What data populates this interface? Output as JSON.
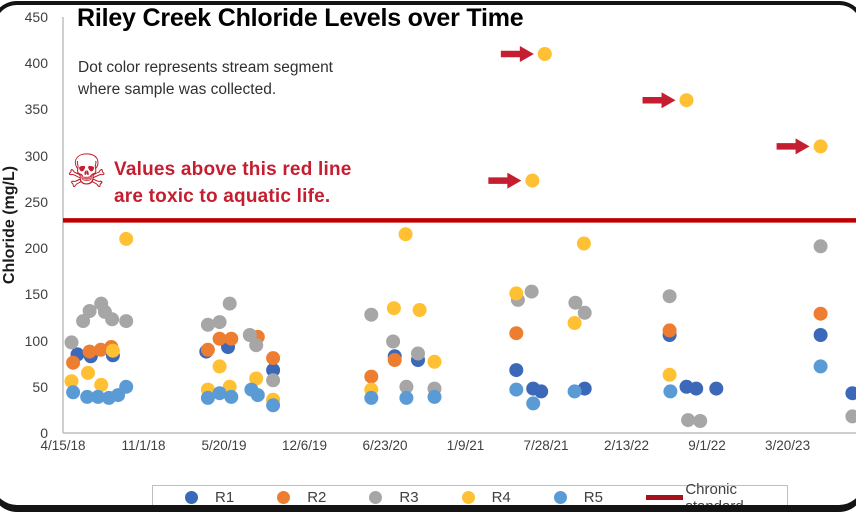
{
  "title": {
    "highlight": "Riley Creek",
    "rest": " Chloride Levels over Time"
  },
  "subtitle": {
    "line1": "Dot color represents stream segment",
    "line2": "where sample was collected."
  },
  "annotation": {
    "icon": "skull-crossbones",
    "glyph": "☠",
    "line1": "Values above this red line",
    "line2": "are toxic to aquatic life.",
    "color": "#c41e30"
  },
  "legend": {
    "items": [
      {
        "label": "R1",
        "color": "#3B68B8"
      },
      {
        "label": "R2",
        "color": "#ED7D31"
      },
      {
        "label": "R3",
        "color": "#A6A6A6"
      },
      {
        "label": "R4",
        "color": "#FFC033"
      },
      {
        "label": "R5",
        "color": "#5B9BD5"
      }
    ],
    "line_item": {
      "label": "Chronic standard",
      "color": "#A6121B"
    }
  },
  "chart_data": {
    "type": "scatter",
    "title": "Riley Creek Chloride Levels over Time",
    "ylabel": "Chloride (mg/L)",
    "ylim": [
      0,
      450
    ],
    "y_ticks": [
      450,
      400,
      350,
      300,
      250,
      200,
      150,
      100,
      50,
      0
    ],
    "x_unit": "days since 4/15/2018",
    "xlim_days": [
      0,
      1970
    ],
    "x_ticks": [
      {
        "days": 0,
        "label": "4/15/18"
      },
      {
        "days": 200,
        "label": "11/1/18"
      },
      {
        "days": 400,
        "label": "5/20/19"
      },
      {
        "days": 600,
        "label": "12/6/19"
      },
      {
        "days": 800,
        "label": "6/23/20"
      },
      {
        "days": 1000,
        "label": "1/9/21"
      },
      {
        "days": 1200,
        "label": "7/28/21"
      },
      {
        "days": 1400,
        "label": "2/13/22"
      },
      {
        "days": 1600,
        "label": "9/1/22"
      },
      {
        "days": 1800,
        "label": "3/20/23"
      }
    ],
    "grid": false,
    "legend_position": "bottom",
    "chronic_standard": {
      "label": "Chronic standard",
      "value": 230,
      "color": "#C00000"
    },
    "series": [
      {
        "name": "R1",
        "color": "#3B68B8",
        "points": [
          [
            36,
            85
          ],
          [
            69,
            83
          ],
          [
            124,
            84
          ],
          [
            356,
            88
          ],
          [
            410,
            93
          ],
          [
            522,
            68
          ],
          [
            824,
            83
          ],
          [
            882,
            79
          ],
          [
            1126,
            68
          ],
          [
            1168,
            48
          ],
          [
            1188,
            45
          ],
          [
            1296,
            48
          ],
          [
            1507,
            106
          ],
          [
            1549,
            50
          ],
          [
            1573,
            48
          ],
          [
            1623,
            48
          ],
          [
            1882,
            106
          ],
          [
            1961,
            43
          ]
        ]
      },
      {
        "name": "R2",
        "color": "#ED7D31",
        "points": [
          [
            25,
            76
          ],
          [
            66,
            88
          ],
          [
            94,
            90
          ],
          [
            120,
            93
          ],
          [
            360,
            90
          ],
          [
            389,
            102
          ],
          [
            418,
            102
          ],
          [
            484,
            104
          ],
          [
            522,
            81
          ],
          [
            766,
            61
          ],
          [
            824,
            79
          ],
          [
            1126,
            108
          ],
          [
            1507,
            111
          ],
          [
            1882,
            129
          ]
        ]
      },
      {
        "name": "R3",
        "color": "#A6A6A6",
        "points": [
          [
            21,
            98
          ],
          [
            50,
            121
          ],
          [
            66,
            132
          ],
          [
            95,
            140
          ],
          [
            104,
            131
          ],
          [
            122,
            123
          ],
          [
            157,
            121
          ],
          [
            360,
            117
          ],
          [
            389,
            120
          ],
          [
            414,
            140
          ],
          [
            464,
            106
          ],
          [
            480,
            95
          ],
          [
            522,
            57
          ],
          [
            766,
            128
          ],
          [
            820,
            99
          ],
          [
            853,
            50
          ],
          [
            882,
            86
          ],
          [
            923,
            48
          ],
          [
            1130,
            144
          ],
          [
            1164,
            153
          ],
          [
            1273,
            141
          ],
          [
            1296,
            130
          ],
          [
            1507,
            148
          ],
          [
            1553,
            14
          ],
          [
            1583,
            13
          ],
          [
            1882,
            202
          ],
          [
            1961,
            18
          ]
        ]
      },
      {
        "name": "R4",
        "color": "#FFC033",
        "points": [
          [
            21,
            56
          ],
          [
            62,
            65
          ],
          [
            95,
            52
          ],
          [
            124,
            89
          ],
          [
            157,
            210
          ],
          [
            360,
            47
          ],
          [
            389,
            72
          ],
          [
            414,
            50
          ],
          [
            480,
            59
          ],
          [
            522,
            36
          ],
          [
            766,
            47
          ],
          [
            822,
            135
          ],
          [
            851,
            215
          ],
          [
            886,
            133
          ],
          [
            923,
            77
          ],
          [
            1126,
            151
          ],
          [
            1166,
            273
          ],
          [
            1197,
            410
          ],
          [
            1271,
            119
          ],
          [
            1294,
            205
          ],
          [
            1507,
            63
          ],
          [
            1549,
            360
          ],
          [
            1882,
            310
          ]
        ]
      },
      {
        "name": "R5",
        "color": "#5B9BD5",
        "points": [
          [
            25,
            44
          ],
          [
            60,
            39
          ],
          [
            87,
            39
          ],
          [
            114,
            38
          ],
          [
            137,
            41
          ],
          [
            157,
            50
          ],
          [
            360,
            38
          ],
          [
            389,
            43
          ],
          [
            418,
            39
          ],
          [
            468,
            47
          ],
          [
            484,
            41
          ],
          [
            522,
            30
          ],
          [
            766,
            38
          ],
          [
            853,
            38
          ],
          [
            923,
            39
          ],
          [
            1126,
            47
          ],
          [
            1168,
            32
          ],
          [
            1271,
            45
          ],
          [
            1509,
            45
          ],
          [
            1882,
            72
          ]
        ]
      }
    ],
    "arrow_annotations": [
      {
        "t": 1197,
        "v": 410
      },
      {
        "t": 1549,
        "v": 360
      },
      {
        "t": 1882,
        "v": 310
      },
      {
        "t": 1166,
        "v": 273
      }
    ],
    "arrow_color": "#c41e30"
  }
}
